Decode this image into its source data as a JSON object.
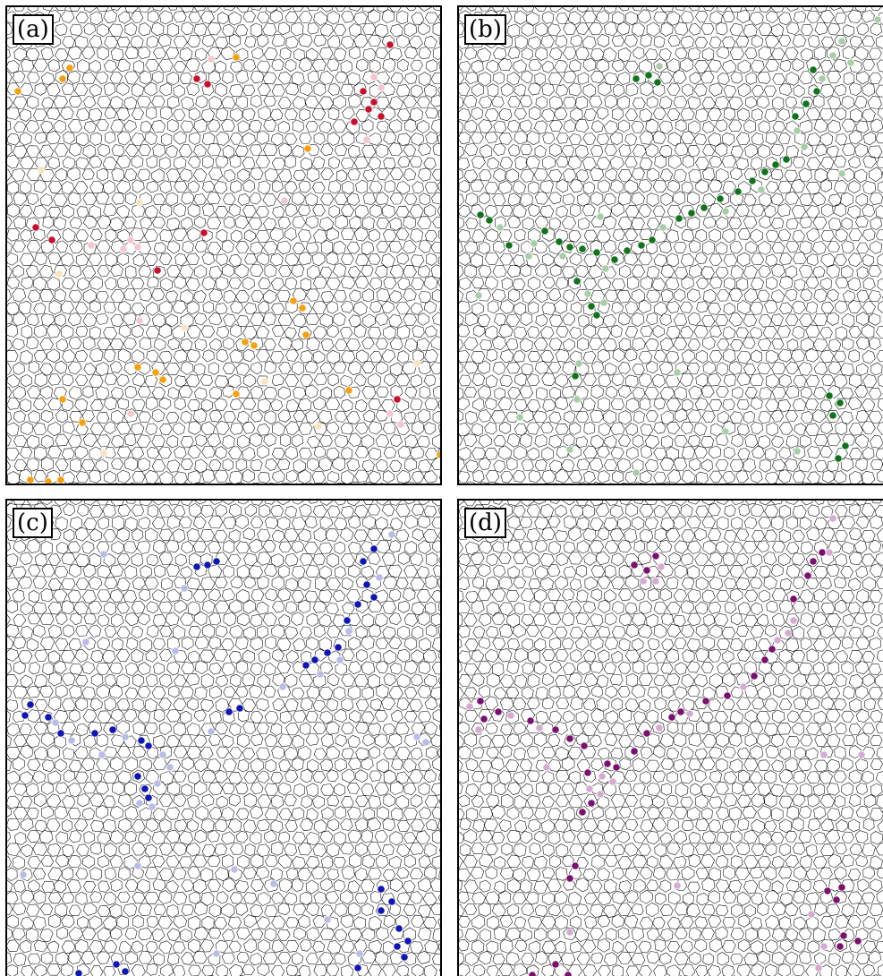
{
  "figure": {
    "background": "#ffffff",
    "cell_edge_color": "#000000",
    "panels": [
      {
        "id": "a",
        "label": "(a)",
        "colors": {
          "strong": [
            "#c8102e",
            "#f5a10c"
          ],
          "faint": [
            "#f4c6cf",
            "#fbe3bd"
          ]
        }
      },
      {
        "id": "b",
        "label": "(b)",
        "colors": {
          "strong": [
            "#11731c"
          ],
          "faint": [
            "#a9cda9"
          ]
        }
      },
      {
        "id": "c",
        "label": "(c)",
        "colors": {
          "strong": [
            "#1015b5"
          ],
          "faint": [
            "#b9bbe8"
          ]
        }
      },
      {
        "id": "d",
        "label": "(d)",
        "colors": {
          "strong": [
            "#7a1070"
          ],
          "faint": [
            "#d6abd1"
          ]
        }
      }
    ]
  }
}
